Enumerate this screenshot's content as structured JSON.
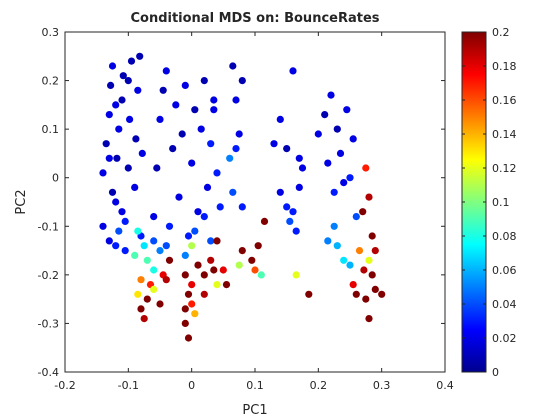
{
  "chart_data": {
    "type": "scatter",
    "title": "Conditional MDS on: BounceRates",
    "xlabel": "PC1",
    "ylabel": "PC2",
    "xlim": [
      -0.2,
      0.4
    ],
    "ylim": [
      -0.4,
      0.3
    ],
    "xticks": [
      -0.2,
      -0.1,
      0,
      0.1,
      0.2,
      0.3,
      0.4
    ],
    "yticks": [
      -0.4,
      -0.3,
      -0.2,
      -0.1,
      0,
      0.1,
      0.2,
      0.3
    ],
    "xtick_labels": [
      "-0.2",
      "-0.1",
      "0",
      "0.1",
      "0.2",
      "0.3",
      "0.4"
    ],
    "ytick_labels": [
      "-0.4",
      "-0.3",
      "-0.2",
      "-0.1",
      "0",
      "0.1",
      "0.2",
      "0.3"
    ],
    "colorbar": {
      "range": [
        0,
        0.2
      ],
      "ticks": [
        0,
        0.02,
        0.04,
        0.06,
        0.08,
        0.1,
        0.12,
        0.14,
        0.16,
        0.18,
        0.2
      ],
      "tick_labels": [
        "0",
        "0.02",
        "0.04",
        "0.06",
        "0.08",
        "0.1",
        "0.12",
        "0.14",
        "0.16",
        "0.18",
        "0.2"
      ],
      "colormap": "jet"
    },
    "grid": false,
    "points": [
      [
        -0.14,
        0.01,
        0.02
      ],
      [
        -0.135,
        0.07,
        0.01
      ],
      [
        -0.13,
        0.13,
        0.02
      ],
      [
        -0.128,
        0.19,
        0.01
      ],
      [
        -0.125,
        0.23,
        0.02
      ],
      [
        -0.12,
        -0.05,
        0.02
      ],
      [
        -0.118,
        0.04,
        0.01
      ],
      [
        -0.115,
        0.1,
        0.02
      ],
      [
        -0.11,
        0.16,
        0.01
      ],
      [
        -0.108,
        0.21,
        0.01
      ],
      [
        -0.105,
        -0.09,
        0.03
      ],
      [
        -0.1,
        0.02,
        0.01
      ],
      [
        -0.098,
        0.12,
        0.02
      ],
      [
        -0.095,
        0.24,
        0.01
      ],
      [
        -0.09,
        -0.02,
        0.02
      ],
      [
        -0.088,
        0.08,
        0.01
      ],
      [
        -0.085,
        0.18,
        0.02
      ],
      [
        -0.082,
        0.25,
        0.01
      ],
      [
        -0.08,
        -0.12,
        0.03
      ],
      [
        -0.078,
        0.05,
        0.02
      ],
      [
        -0.14,
        -0.1,
        0.02
      ],
      [
        -0.13,
        -0.13,
        0.02
      ],
      [
        -0.12,
        -0.14,
        0.03
      ],
      [
        -0.115,
        -0.11,
        0.04
      ],
      [
        -0.105,
        -0.15,
        0.03
      ],
      [
        -0.125,
        -0.03,
        0.01
      ],
      [
        -0.13,
        0.04,
        0.02
      ],
      [
        -0.12,
        0.15,
        0.02
      ],
      [
        -0.1,
        0.2,
        0.01
      ],
      [
        -0.11,
        -0.07,
        0.02
      ],
      [
        -0.06,
        -0.08,
        0.02
      ],
      [
        -0.055,
        0.02,
        0.01
      ],
      [
        -0.05,
        0.12,
        0.02
      ],
      [
        -0.045,
        0.18,
        0.01
      ],
      [
        -0.04,
        0.22,
        0.02
      ],
      [
        -0.035,
        -0.1,
        0.03
      ],
      [
        -0.03,
        0.06,
        0.01
      ],
      [
        -0.025,
        0.15,
        0.02
      ],
      [
        -0.02,
        -0.04,
        0.02
      ],
      [
        -0.015,
        0.09,
        0.01
      ],
      [
        -0.01,
        0.19,
        0.02
      ],
      [
        -0.005,
        -0.12,
        0.03
      ],
      [
        0.0,
        0.03,
        0.02
      ],
      [
        0.005,
        0.14,
        0.01
      ],
      [
        0.01,
        -0.07,
        0.02
      ],
      [
        0.015,
        0.1,
        0.02
      ],
      [
        0.02,
        0.2,
        0.01
      ],
      [
        0.025,
        -0.02,
        0.02
      ],
      [
        0.03,
        0.07,
        0.03
      ],
      [
        0.035,
        0.14,
        0.02
      ],
      [
        -0.06,
        -0.13,
        0.04
      ],
      [
        -0.05,
        -0.15,
        0.05
      ],
      [
        -0.04,
        -0.14,
        0.04
      ],
      [
        -0.01,
        -0.16,
        0.05
      ],
      [
        0.005,
        -0.11,
        0.04
      ],
      [
        0.02,
        -0.08,
        0.03
      ],
      [
        0.03,
        -0.13,
        0.04
      ],
      [
        0.04,
        0.01,
        0.03
      ],
      [
        0.045,
        -0.06,
        0.03
      ],
      [
        0.035,
        0.16,
        0.02
      ],
      [
        0.065,
        0.23,
        0.01
      ],
      [
        0.07,
        0.16,
        0.02
      ],
      [
        0.075,
        0.09,
        0.02
      ],
      [
        0.08,
        0.2,
        0.01
      ],
      [
        0.06,
        0.04,
        0.05
      ],
      [
        0.065,
        -0.03,
        0.04
      ],
      [
        0.07,
        0.06,
        0.03
      ],
      [
        0.08,
        -0.06,
        0.03
      ],
      [
        0.13,
        0.07,
        0.02
      ],
      [
        0.14,
        0.12,
        0.02
      ],
      [
        0.15,
        0.06,
        0.01
      ],
      [
        0.16,
        0.22,
        0.02
      ],
      [
        0.17,
        0.04,
        0.02
      ],
      [
        0.14,
        -0.03,
        0.02
      ],
      [
        0.15,
        -0.06,
        0.03
      ],
      [
        0.155,
        -0.09,
        0.04
      ],
      [
        0.16,
        -0.07,
        0.03
      ],
      [
        0.17,
        -0.02,
        0.02
      ],
      [
        0.175,
        0.02,
        0.02
      ],
      [
        0.165,
        -0.11,
        0.03
      ],
      [
        0.2,
        0.09,
        0.02
      ],
      [
        0.21,
        0.13,
        0.01
      ],
      [
        0.215,
        0.03,
        0.02
      ],
      [
        0.22,
        0.17,
        0.02
      ],
      [
        0.225,
        -0.03,
        0.03
      ],
      [
        0.23,
        0.1,
        0.01
      ],
      [
        0.235,
        0.05,
        0.02
      ],
      [
        0.24,
        -0.01,
        0.02
      ],
      [
        0.245,
        0.14,
        0.02
      ],
      [
        0.25,
        0.0,
        0.03
      ],
      [
        0.255,
        0.08,
        0.02
      ],
      [
        0.26,
        -0.08,
        0.04
      ],
      [
        0.225,
        -0.1,
        0.05
      ],
      [
        0.23,
        -0.14,
        0.06
      ],
      [
        0.24,
        -0.17,
        0.07
      ],
      [
        0.25,
        -0.18,
        0.06
      ],
      [
        0.215,
        -0.13,
        0.05
      ],
      [
        0.275,
        0.02,
        0.17
      ],
      [
        0.28,
        -0.04,
        0.19
      ],
      [
        0.27,
        -0.07,
        0.2
      ],
      [
        0.285,
        -0.12,
        0.2
      ],
      [
        0.29,
        -0.15,
        0.19
      ],
      [
        0.28,
        -0.17,
        0.12
      ],
      [
        0.285,
        -0.2,
        0.2
      ],
      [
        0.26,
        -0.24,
        0.2
      ],
      [
        0.275,
        -0.25,
        0.2
      ],
      [
        0.29,
        -0.23,
        0.2
      ],
      [
        0.28,
        -0.29,
        0.2
      ],
      [
        0.255,
        -0.22,
        0.18
      ],
      [
        0.3,
        -0.24,
        0.2
      ],
      [
        0.265,
        -0.15,
        0.15
      ],
      [
        0.272,
        -0.19,
        0.19
      ],
      [
        -0.09,
        -0.16,
        0.09
      ],
      [
        -0.085,
        -0.11,
        0.08
      ],
      [
        -0.075,
        -0.14,
        0.07
      ],
      [
        -0.07,
        -0.17,
        0.09
      ],
      [
        -0.06,
        -0.19,
        0.08
      ],
      [
        -0.08,
        -0.21,
        0.15
      ],
      [
        -0.085,
        -0.24,
        0.13
      ],
      [
        -0.08,
        -0.27,
        0.2
      ],
      [
        -0.07,
        -0.25,
        0.2
      ],
      [
        -0.065,
        -0.22,
        0.17
      ],
      [
        -0.075,
        -0.29,
        0.19
      ],
      [
        -0.06,
        -0.23,
        0.12
      ],
      [
        -0.05,
        -0.26,
        0.2
      ],
      [
        -0.045,
        -0.2,
        0.18
      ],
      [
        -0.04,
        -0.21,
        0.19
      ],
      [
        -0.035,
        -0.17,
        0.2
      ],
      [
        -0.01,
        -0.2,
        0.2
      ],
      [
        0.0,
        -0.22,
        0.18
      ],
      [
        -0.005,
        -0.24,
        0.2
      ],
      [
        0.0,
        -0.26,
        0.17
      ],
      [
        0.005,
        -0.28,
        0.14
      ],
      [
        -0.01,
        -0.3,
        0.2
      ],
      [
        -0.005,
        -0.33,
        0.2
      ],
      [
        -0.01,
        -0.27,
        0.2
      ],
      [
        0.0,
        -0.14,
        0.11
      ],
      [
        0.01,
        -0.18,
        0.2
      ],
      [
        0.02,
        -0.2,
        0.2
      ],
      [
        0.03,
        -0.17,
        0.19
      ],
      [
        0.035,
        -0.19,
        0.2
      ],
      [
        0.04,
        -0.13,
        0.2
      ],
      [
        0.02,
        -0.24,
        0.19
      ],
      [
        0.04,
        -0.22,
        0.12
      ],
      [
        0.05,
        -0.19,
        0.18
      ],
      [
        0.055,
        -0.22,
        0.2
      ],
      [
        0.075,
        -0.18,
        0.11
      ],
      [
        0.08,
        -0.15,
        0.2
      ],
      [
        0.095,
        -0.17,
        0.2
      ],
      [
        0.1,
        -0.19,
        0.16
      ],
      [
        0.105,
        -0.14,
        0.2
      ],
      [
        0.115,
        -0.09,
        0.2
      ],
      [
        0.11,
        -0.2,
        0.09
      ],
      [
        0.165,
        -0.2,
        0.12
      ],
      [
        0.185,
        -0.24,
        0.2
      ]
    ]
  }
}
